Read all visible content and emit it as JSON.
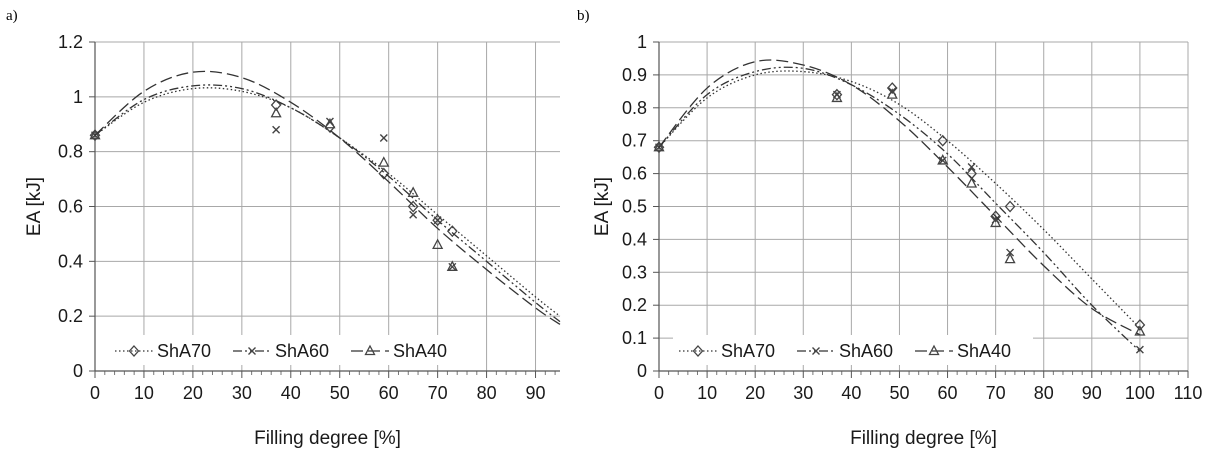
{
  "chart_data": [
    {
      "panel": "a)",
      "type": "scatter",
      "xlabel": "Filling degree [%]",
      "ylabel": "EA [kJ]",
      "xlim": [
        0,
        95
      ],
      "ylim": [
        0,
        1.2
      ],
      "xticks": [
        0,
        10,
        20,
        30,
        40,
        50,
        60,
        70,
        80,
        90
      ],
      "yticks": [
        0,
        0.2,
        0.4,
        0.6,
        0.8,
        1,
        1.2
      ],
      "ytick_labels": [
        "0",
        "0.2",
        "0.4",
        "0.6",
        "0.8",
        "1",
        "1.2"
      ],
      "grid": true,
      "legend_position": "bottom-left",
      "series": [
        {
          "name": "ShA70",
          "marker": "diamond",
          "line_style": "dotted",
          "points": [
            [
              0,
              0.86
            ],
            [
              37,
              0.97
            ],
            [
              48,
              0.89
            ],
            [
              59,
              0.72
            ],
            [
              65,
              0.6
            ],
            [
              70,
              0.55
            ],
            [
              73,
              0.51
            ]
          ],
          "fit_curve": [
            [
              0,
              0.86
            ],
            [
              10,
              0.98
            ],
            [
              20,
              1.03
            ],
            [
              30,
              1.02
            ],
            [
              40,
              0.96
            ],
            [
              50,
              0.85
            ],
            [
              60,
              0.72
            ],
            [
              70,
              0.57
            ],
            [
              80,
              0.42
            ],
            [
              90,
              0.27
            ],
            [
              95,
              0.2
            ]
          ]
        },
        {
          "name": "ShA60",
          "marker": "x",
          "line_style": "dash-dot-dot",
          "points": [
            [
              0,
              0.86
            ],
            [
              37,
              0.88
            ],
            [
              48,
              0.91
            ],
            [
              59,
              0.85
            ],
            [
              65,
              0.57
            ],
            [
              70,
              0.55
            ],
            [
              73,
              0.38
            ]
          ],
          "fit_curve": [
            [
              0,
              0.86
            ],
            [
              10,
              0.99
            ],
            [
              20,
              1.04
            ],
            [
              30,
              1.03
            ],
            [
              40,
              0.96
            ],
            [
              50,
              0.85
            ],
            [
              60,
              0.71
            ],
            [
              70,
              0.55
            ],
            [
              80,
              0.4
            ],
            [
              90,
              0.25
            ],
            [
              95,
              0.18
            ]
          ]
        },
        {
          "name": "ShA40",
          "marker": "triangle",
          "line_style": "long-dash",
          "points": [
            [
              0,
              0.86
            ],
            [
              37,
              0.94
            ],
            [
              48,
              0.9
            ],
            [
              59,
              0.76
            ],
            [
              65,
              0.65
            ],
            [
              70,
              0.46
            ],
            [
              73,
              0.38
            ]
          ],
          "fit_curve": [
            [
              0,
              0.86
            ],
            [
              10,
              1.02
            ],
            [
              20,
              1.09
            ],
            [
              30,
              1.07
            ],
            [
              40,
              0.98
            ],
            [
              50,
              0.85
            ],
            [
              60,
              0.69
            ],
            [
              70,
              0.52
            ],
            [
              80,
              0.37
            ],
            [
              90,
              0.23
            ],
            [
              95,
              0.17
            ]
          ]
        }
      ]
    },
    {
      "panel": "b)",
      "type": "scatter",
      "xlabel": "Filling degree [%]",
      "ylabel": "EA [kJ]",
      "xlim": [
        0,
        110
      ],
      "ylim": [
        0,
        1
      ],
      "xticks": [
        0,
        10,
        20,
        30,
        40,
        50,
        60,
        70,
        80,
        90,
        100,
        110
      ],
      "yticks": [
        0,
        0.1,
        0.2,
        0.3,
        0.4,
        0.5,
        0.6,
        0.7,
        0.8,
        0.9,
        1
      ],
      "ytick_labels": [
        "0",
        "0.1",
        "0.2",
        "0.3",
        "0.4",
        "0.5",
        "0.6",
        "0.7",
        "0.8",
        "0.9",
        "1"
      ],
      "grid": true,
      "legend_position": "bottom-left",
      "series": [
        {
          "name": "ShA70",
          "marker": "diamond",
          "line_style": "dotted",
          "points": [
            [
              0,
              0.68
            ],
            [
              37,
              0.84
            ],
            [
              48.5,
              0.86
            ],
            [
              59,
              0.7
            ],
            [
              65,
              0.6
            ],
            [
              70,
              0.47
            ],
            [
              73,
              0.5
            ],
            [
              100,
              0.14
            ]
          ],
          "fit_curve": [
            [
              0,
              0.68
            ],
            [
              10,
              0.83
            ],
            [
              20,
              0.9
            ],
            [
              30,
              0.91
            ],
            [
              40,
              0.88
            ],
            [
              50,
              0.81
            ],
            [
              60,
              0.7
            ],
            [
              70,
              0.57
            ],
            [
              80,
              0.43
            ],
            [
              90,
              0.28
            ],
            [
              100,
              0.13
            ]
          ]
        },
        {
          "name": "ShA60",
          "marker": "x",
          "line_style": "dash-dot-dot",
          "points": [
            [
              0,
              0.68
            ],
            [
              37,
              0.84
            ],
            [
              48.5,
              0.85
            ],
            [
              59,
              0.64
            ],
            [
              65,
              0.62
            ],
            [
              70,
              0.46
            ],
            [
              73,
              0.36
            ],
            [
              100,
              0.065
            ]
          ],
          "fit_curve": [
            [
              0,
              0.68
            ],
            [
              10,
              0.84
            ],
            [
              20,
              0.91
            ],
            [
              30,
              0.92
            ],
            [
              40,
              0.87
            ],
            [
              50,
              0.78
            ],
            [
              60,
              0.66
            ],
            [
              70,
              0.51
            ],
            [
              80,
              0.36
            ],
            [
              90,
              0.2
            ],
            [
              100,
              0.06
            ]
          ]
        },
        {
          "name": "ShA40",
          "marker": "triangle",
          "line_style": "long-dash",
          "points": [
            [
              0,
              0.68
            ],
            [
              37,
              0.83
            ],
            [
              48.5,
              0.84
            ],
            [
              59,
              0.64
            ],
            [
              65,
              0.57
            ],
            [
              70,
              0.45
            ],
            [
              73,
              0.34
            ],
            [
              100,
              0.12
            ]
          ],
          "fit_curve": [
            [
              0,
              0.68
            ],
            [
              10,
              0.86
            ],
            [
              20,
              0.94
            ],
            [
              30,
              0.93
            ],
            [
              40,
              0.87
            ],
            [
              50,
              0.76
            ],
            [
              60,
              0.62
            ],
            [
              70,
              0.47
            ],
            [
              80,
              0.32
            ],
            [
              90,
              0.19
            ],
            [
              100,
              0.11
            ]
          ]
        }
      ]
    }
  ]
}
